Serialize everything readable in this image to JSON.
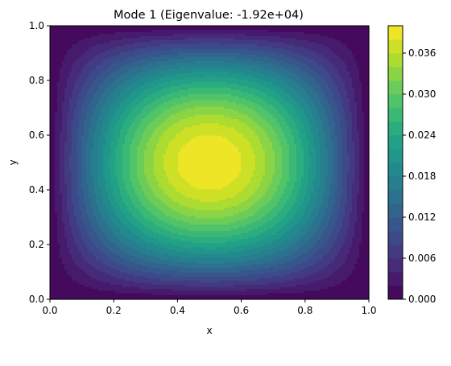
{
  "chart_data": {
    "type": "heatmap",
    "subtype": "filled-contour",
    "title": "Mode 1 (Eigenvalue: -1.92e+04)",
    "xlabel": "x",
    "ylabel": "y",
    "xlim": [
      0.0,
      1.0
    ],
    "ylim": [
      0.0,
      1.0
    ],
    "xticks": [
      "0.0",
      "0.2",
      "0.4",
      "0.6",
      "0.8",
      "1.0"
    ],
    "yticks": [
      "0.0",
      "0.2",
      "0.4",
      "0.6",
      "0.8",
      "1.0"
    ],
    "colormap": "viridis",
    "field": "0.04 * sin(pi*x) * sin(pi*y)",
    "value_range": [
      0.0,
      0.04
    ],
    "levels": [
      0.0,
      0.002,
      0.004,
      0.006,
      0.008,
      0.01,
      0.012,
      0.014,
      0.016,
      0.018,
      0.02,
      0.022,
      0.024,
      0.026,
      0.028,
      0.03,
      0.032,
      0.034,
      0.036,
      0.038,
      0.04
    ],
    "colorbar_ticks": [
      "0.000",
      "0.006",
      "0.012",
      "0.018",
      "0.024",
      "0.030",
      "0.036"
    ],
    "colorbar_tick_values": [
      0.0,
      0.006,
      0.012,
      0.018,
      0.024,
      0.03,
      0.036
    ],
    "grid": false,
    "legend": "none",
    "colorbar": "right"
  }
}
